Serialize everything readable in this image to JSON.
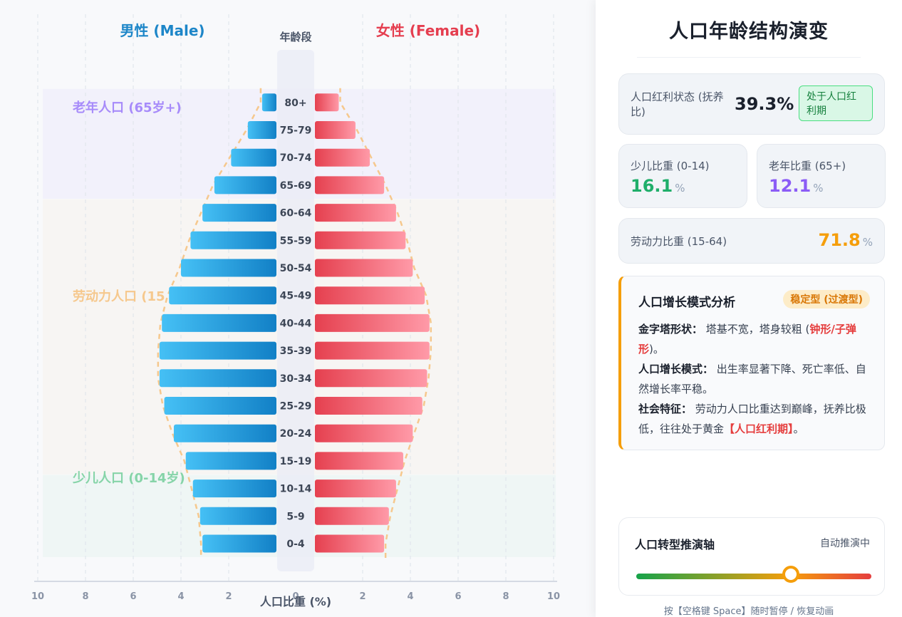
{
  "chart_data": {
    "type": "bar",
    "subtype": "population-pyramid",
    "categories": [
      "0-4",
      "5-9",
      "10-14",
      "15-19",
      "20-24",
      "25-29",
      "30-34",
      "35-39",
      "40-44",
      "45-49",
      "50-54",
      "55-59",
      "60-64",
      "65-69",
      "70-74",
      "75-79",
      "80+"
    ],
    "series": [
      {
        "name": "男性 (Male)",
        "side": "left",
        "color": "#2b9ee6",
        "values": [
          3.1,
          3.2,
          3.5,
          3.8,
          4.3,
          4.7,
          4.9,
          4.9,
          4.8,
          4.5,
          4.0,
          3.6,
          3.1,
          2.6,
          1.9,
          1.2,
          0.6
        ]
      },
      {
        "name": "女性 (Female)",
        "side": "right",
        "color": "#ef4b5b",
        "values": [
          2.9,
          3.1,
          3.4,
          3.7,
          4.1,
          4.5,
          4.7,
          4.8,
          4.8,
          4.6,
          4.1,
          3.8,
          3.4,
          2.9,
          2.3,
          1.7,
          1.0
        ]
      }
    ],
    "xlabel": "人口比重 (%)",
    "center_header": "年龄段",
    "xlim": [
      -10,
      10
    ],
    "x_ticks": [
      10,
      8,
      6,
      4,
      2,
      0,
      2,
      4,
      6,
      8,
      10
    ],
    "grid": true,
    "bands": [
      {
        "label": "老年人口 (65岁+)",
        "color": "#a78bfa",
        "range": [
          "65-69",
          "80+"
        ]
      },
      {
        "label": "劳动力人口 (15",
        "color": "#f6c88d",
        "range": [
          "15-19",
          "60-64"
        ]
      },
      {
        "label": "少儿人口 (0-14岁)",
        "color": "#86d4a8",
        "range": [
          "0-4",
          "10-14"
        ]
      }
    ],
    "outline_color": "#f6c88d"
  },
  "sidebar": {
    "title": "人口年龄结构演变",
    "dividend": {
      "label": "人口红利状态 (抚养比)",
      "value": "39.3%",
      "badge": "处于人口红利期"
    },
    "child": {
      "label": "少儿比重 (0-14)",
      "value": "16.1",
      "unit": "%",
      "color": "#1fae6a"
    },
    "elderly": {
      "label": "老年比重 (65+)",
      "value": "12.1",
      "unit": "%",
      "color": "#8b5cf6"
    },
    "labor": {
      "label": "劳动力比重 (15-64)",
      "value": "71.8",
      "unit": "%",
      "color": "#f59e0b"
    },
    "analysis": {
      "title": "人口增长模式分析",
      "badge": "稳定型 (过渡型)",
      "shape_label": "金字塔形状：",
      "shape_text": " 塔基不宽，塔身较粗 (",
      "shape_highlight": "钟形/子弹形",
      "shape_tail": ")。",
      "mode_label": "人口增长模式：",
      "mode_text": " 出生率显著下降、死亡率低、自然增长率平稳。",
      "social_label": "社会特征：",
      "social_text": " 劳动力人口比重达到巅峰，抚养比极低，往往处于黄金",
      "social_highlight": "【人口红利期】",
      "social_tail": "。"
    },
    "timeline": {
      "title": "人口转型推演轴",
      "status": "自动推演中",
      "progress": 0.67
    },
    "hint": "按【空格键 Space】随时暂停 / 恢复动画"
  }
}
